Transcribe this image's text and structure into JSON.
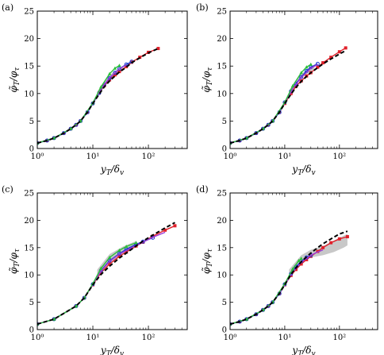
{
  "chart_data": [
    {
      "type": "line",
      "panel": "(a)",
      "xlabel": {
        "main": "y",
        "sub": "T",
        "rest": "/δ",
        "sub2": "v"
      },
      "ylabel": {
        "main": "φ̃",
        "sub": "T",
        "rest": "/φ",
        "sub2": "τ"
      },
      "xscale": "log",
      "xlim": [
        1,
        500
      ],
      "ylim": [
        0,
        25
      ],
      "x_ticks": [
        1,
        10,
        100
      ],
      "x_tick_labels": [
        "10⁰",
        "10¹",
        "10²"
      ],
      "y_ticks": [
        0,
        5,
        10,
        15,
        20,
        25
      ],
      "y_tick_labels": [
        "0",
        "5",
        "10",
        "15",
        "20",
        "25"
      ],
      "band": {
        "color": "#c8c8c8",
        "x": [
          12,
          20,
          35
        ],
        "upper": [
          10.4,
          13.4,
          15.0
        ],
        "lower": [
          9.8,
          12.6,
          14.2
        ]
      },
      "series": [
        {
          "color": "#e0202a",
          "style": "solid",
          "marker": "square",
          "x": [
            1,
            1.5,
            2,
            3,
            4,
            5,
            6,
            8,
            10,
            13,
            16,
            20,
            25,
            30,
            40,
            50,
            70,
            100,
            150
          ],
          "y": [
            1.0,
            1.45,
            1.9,
            2.8,
            3.6,
            4.3,
            5.0,
            6.6,
            8.2,
            10.1,
            11.4,
            12.5,
            13.4,
            14.0,
            14.9,
            15.7,
            16.6,
            17.5,
            18.2
          ]
        },
        {
          "color": "#1a3ccf",
          "style": "solid",
          "marker": "circle",
          "x": [
            1,
            1.5,
            2,
            3,
            4,
            5,
            6,
            8,
            10,
            13,
            16,
            20,
            25,
            30,
            40,
            50
          ],
          "y": [
            1.0,
            1.45,
            1.9,
            2.8,
            3.6,
            4.3,
            5.0,
            6.6,
            8.2,
            10.1,
            11.6,
            12.8,
            13.8,
            14.5,
            15.3,
            15.8
          ]
        },
        {
          "color": "#9a3ad6",
          "style": "solid",
          "marker": "none",
          "x": [
            1,
            2,
            4,
            6,
            10,
            14,
            20,
            30,
            40
          ],
          "y": [
            1.0,
            1.9,
            3.6,
            5.0,
            8.2,
            10.8,
            12.9,
            14.5,
            15.2
          ]
        },
        {
          "color": "#2bbf3a",
          "style": "solid",
          "marker": "triangle",
          "x": [
            1,
            2,
            4,
            6,
            10,
            14,
            20,
            25,
            30
          ],
          "y": [
            1.0,
            1.9,
            3.6,
            5.0,
            8.3,
            11.2,
            13.6,
            14.6,
            15.1
          ]
        },
        {
          "color": "#000000",
          "style": "dashed",
          "marker": "none",
          "x": [
            1,
            1.5,
            2,
            3,
            4,
            5,
            6,
            8,
            10,
            13,
            16,
            20,
            25,
            30,
            40,
            50,
            70,
            100,
            150
          ],
          "y": [
            1.0,
            1.45,
            1.9,
            2.8,
            3.6,
            4.3,
            5.0,
            6.6,
            8.2,
            9.9,
            11.2,
            12.3,
            13.2,
            13.9,
            14.8,
            15.6,
            16.5,
            17.4,
            18.2
          ]
        }
      ]
    },
    {
      "type": "line",
      "panel": "(b)",
      "xlabel": {
        "main": "y",
        "sub": "T",
        "rest": "/δ",
        "sub2": "v"
      },
      "ylabel": {
        "main": "φ̃",
        "sub": "T",
        "rest": "/φ",
        "sub2": "τ"
      },
      "xscale": "log",
      "xlim": [
        1,
        500
      ],
      "ylim": [
        0,
        25
      ],
      "x_ticks": [
        1,
        10,
        100
      ],
      "x_tick_labels": [
        "10⁰",
        "10¹",
        "10²"
      ],
      "y_ticks": [
        0,
        5,
        10,
        15,
        20,
        25
      ],
      "y_tick_labels": [
        "0",
        "5",
        "10",
        "15",
        "20",
        "25"
      ],
      "band": {
        "color": "#c8c8c8",
        "x": [
          12,
          20,
          35
        ],
        "upper": [
          10.6,
          13.6,
          15.3
        ],
        "lower": [
          10.0,
          12.8,
          14.5
        ]
      },
      "series": [
        {
          "color": "#e0202a",
          "style": "solid",
          "marker": "square",
          "x": [
            1,
            1.5,
            2,
            3,
            4,
            5,
            6,
            8,
            10,
            13,
            16,
            20,
            25,
            30,
            40,
            50,
            70,
            100,
            130
          ],
          "y": [
            1.0,
            1.45,
            1.9,
            2.8,
            3.6,
            4.3,
            5.0,
            6.6,
            8.2,
            10.0,
            11.3,
            12.3,
            13.2,
            13.8,
            14.8,
            15.6,
            16.6,
            17.6,
            18.3
          ]
        },
        {
          "color": "#1a3ccf",
          "style": "solid",
          "marker": "circle",
          "x": [
            1,
            1.5,
            2,
            3,
            4,
            5,
            6,
            8,
            10,
            13,
            16,
            20,
            25,
            30,
            40
          ],
          "y": [
            1.0,
            1.45,
            1.9,
            2.8,
            3.6,
            4.3,
            5.0,
            6.6,
            8.4,
            10.4,
            11.8,
            13.0,
            14.1,
            14.8,
            15.4
          ]
        },
        {
          "color": "#9a3ad6",
          "style": "solid",
          "marker": "none",
          "x": [
            1,
            2,
            4,
            6,
            10,
            14,
            20,
            30,
            40
          ],
          "y": [
            1.0,
            1.9,
            3.6,
            5.0,
            8.3,
            10.9,
            12.9,
            14.6,
            15.3
          ]
        },
        {
          "color": "#2bbf3a",
          "style": "solid",
          "marker": "triangle",
          "x": [
            1,
            2,
            4,
            6,
            10,
            14,
            20,
            25,
            30
          ],
          "y": [
            1.0,
            1.9,
            3.6,
            5.0,
            8.4,
            11.4,
            13.8,
            14.8,
            15.3
          ]
        },
        {
          "color": "#000000",
          "style": "dashed",
          "marker": "none",
          "x": [
            1,
            1.5,
            2,
            3,
            4,
            5,
            6,
            8,
            10,
            13,
            16,
            20,
            25,
            30,
            40,
            50,
            70,
            100,
            130
          ],
          "y": [
            1.0,
            1.45,
            1.9,
            2.8,
            3.6,
            4.3,
            5.0,
            6.6,
            8.2,
            9.9,
            11.1,
            12.2,
            13.1,
            13.8,
            14.7,
            15.4,
            16.3,
            17.2,
            17.8
          ]
        }
      ]
    },
    {
      "type": "line",
      "panel": "(c)",
      "xlabel": {
        "main": "y",
        "sub": "T",
        "rest": "/δ",
        "sub2": "v"
      },
      "ylabel": {
        "main": "φ̃",
        "sub": "T",
        "rest": "/φ",
        "sub2": "τ"
      },
      "xscale": "log",
      "xlim": [
        1,
        500
      ],
      "ylim": [
        0,
        25
      ],
      "x_ticks": [
        1,
        10,
        100
      ],
      "x_tick_labels": [
        "10⁰",
        "10¹",
        "10²"
      ],
      "y_ticks": [
        0,
        5,
        10,
        15,
        20,
        25
      ],
      "y_tick_labels": [
        "0",
        "5",
        "10",
        "15",
        "20",
        "25"
      ],
      "band": {
        "color": "#c8c8c8",
        "x": [
          12,
          20,
          35,
          60
        ],
        "upper": [
          11.0,
          13.8,
          15.2,
          16.2
        ],
        "lower": [
          9.6,
          12.2,
          13.8,
          15.0
        ]
      },
      "series": [
        {
          "color": "#e0202a",
          "style": "solid",
          "marker": "square",
          "x": [
            1,
            2,
            5,
            7,
            10,
            14,
            20,
            30,
            40,
            60,
            80,
            120,
            200,
            300
          ],
          "y": [
            1.0,
            1.9,
            4.3,
            5.8,
            8.2,
            10.4,
            12.0,
            13.4,
            14.2,
            15.3,
            16.0,
            17.1,
            18.2,
            19.0
          ]
        },
        {
          "color": "#1a3ccf",
          "style": "solid",
          "marker": "circle",
          "x": [
            1,
            2,
            5,
            7,
            10,
            14,
            20,
            30,
            40,
            60,
            80,
            120
          ],
          "y": [
            1.0,
            1.9,
            4.3,
            5.8,
            8.3,
            10.8,
            12.6,
            13.9,
            14.7,
            15.6,
            16.1,
            16.8
          ]
        },
        {
          "color": "#9a3ad6",
          "style": "solid",
          "marker": "none",
          "x": [
            1,
            2,
            5,
            7,
            10,
            14,
            20,
            30,
            50,
            80,
            120,
            200
          ],
          "y": [
            1.0,
            1.9,
            4.3,
            5.8,
            8.3,
            10.7,
            12.5,
            13.8,
            15.0,
            16.0,
            16.9,
            17.8
          ]
        },
        {
          "color": "#2bbf3a",
          "style": "solid",
          "marker": "triangle",
          "x": [
            1,
            2,
            5,
            7,
            10,
            14,
            20,
            30,
            40,
            60
          ],
          "y": [
            1.0,
            1.9,
            4.3,
            5.8,
            8.4,
            11.2,
            13.2,
            14.5,
            15.2,
            15.9
          ]
        },
        {
          "color": "#000000",
          "style": "dashed",
          "marker": "none",
          "x": [
            1,
            2,
            5,
            7,
            10,
            14,
            20,
            30,
            40,
            60,
            80,
            120,
            200,
            300
          ],
          "y": [
            1.0,
            1.9,
            4.3,
            5.8,
            8.2,
            10.1,
            11.6,
            13.1,
            14.0,
            15.3,
            16.2,
            17.3,
            18.6,
            19.6
          ]
        }
      ]
    },
    {
      "type": "line",
      "panel": "(d)",
      "xlabel": {
        "main": "y",
        "sub": "T",
        "rest": "/δ",
        "sub2": "v"
      },
      "ylabel": {
        "main": "φ̃",
        "sub": "T",
        "rest": "/φ",
        "sub2": "τ"
      },
      "xscale": "log",
      "xlim": [
        1,
        500
      ],
      "ylim": [
        0,
        25
      ],
      "x_ticks": [
        1,
        10,
        100
      ],
      "x_tick_labels": [
        "10⁰",
        "10¹",
        "10²"
      ],
      "y_ticks": [
        0,
        5,
        10,
        15,
        20,
        25
      ],
      "y_tick_labels": [
        "0",
        "5",
        "10",
        "15",
        "20",
        "25"
      ],
      "band": {
        "color": "#c8c8c8",
        "x": [
          12,
          20,
          30,
          50,
          80,
          120,
          140
        ],
        "upper": [
          11.0,
          13.6,
          14.6,
          15.3,
          16.3,
          17.2,
          17.5
        ],
        "lower": [
          9.8,
          12.2,
          13.2,
          13.6,
          14.2,
          15.0,
          15.4
        ]
      },
      "series": [
        {
          "color": "#e0202a",
          "style": "solid",
          "marker": "square",
          "x": [
            1,
            1.5,
            2,
            3,
            4,
            5,
            6,
            8,
            10,
            13,
            16,
            20,
            25,
            30,
            40,
            50,
            70,
            100,
            140
          ],
          "y": [
            1.0,
            1.45,
            1.9,
            2.8,
            3.6,
            4.3,
            5.0,
            6.6,
            8.2,
            9.9,
            11.0,
            12.0,
            12.8,
            13.4,
            14.3,
            15.0,
            15.9,
            16.6,
            17.0
          ]
        },
        {
          "color": "#1a3ccf",
          "style": "solid",
          "marker": "circle",
          "x": [
            1,
            1.5,
            2,
            3,
            4,
            5,
            6,
            8,
            10,
            13,
            16,
            20,
            25,
            30
          ],
          "y": [
            1.0,
            1.45,
            1.9,
            2.8,
            3.6,
            4.3,
            5.0,
            6.6,
            8.3,
            10.2,
            11.5,
            12.5,
            13.2,
            13.6
          ]
        },
        {
          "color": "#9a3ad6",
          "style": "solid",
          "marker": "none",
          "x": [
            1,
            2,
            4,
            6,
            10,
            14,
            20,
            30,
            40,
            50
          ],
          "y": [
            1.0,
            1.9,
            3.6,
            5.0,
            8.2,
            10.5,
            12.3,
            13.6,
            14.2,
            14.6
          ]
        },
        {
          "color": "#2bbf3a",
          "style": "solid",
          "marker": "triangle",
          "x": [
            1,
            2,
            4,
            6,
            10,
            14,
            18,
            20
          ],
          "y": [
            1.0,
            1.9,
            3.6,
            5.0,
            8.4,
            11.1,
            12.6,
            13.0
          ]
        },
        {
          "color": "#000000",
          "style": "dashed",
          "marker": "none",
          "x": [
            1,
            1.5,
            2,
            3,
            4,
            5,
            6,
            8,
            10,
            13,
            16,
            20,
            25,
            30,
            40,
            50,
            70,
            100,
            140
          ],
          "y": [
            1.0,
            1.45,
            1.9,
            2.8,
            3.6,
            4.3,
            5.0,
            6.6,
            8.2,
            10.1,
            11.3,
            12.4,
            13.3,
            14.0,
            15.0,
            15.7,
            16.6,
            17.5,
            18.0
          ]
        }
      ]
    }
  ]
}
